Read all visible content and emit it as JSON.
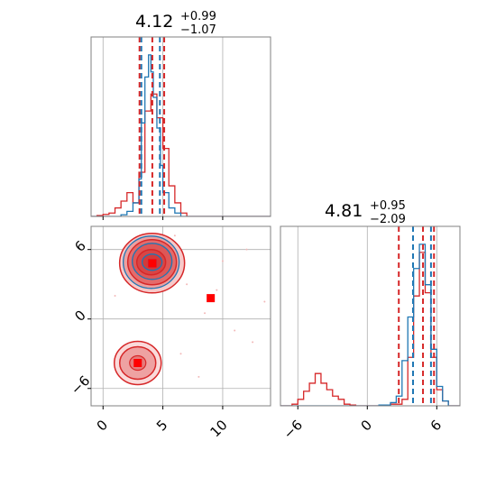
{
  "chart_data": [
    {
      "type": "histogram",
      "panel": "top-left marginal (x)",
      "title": {
        "base": "4.12",
        "sup": "+0.99",
        "sub": "−1.07"
      },
      "xlim": [
        -1,
        14
      ],
      "xticks": [
        0,
        5,
        10
      ],
      "grid": true,
      "series": [
        {
          "color": "#d62728",
          "x": [
            -1.0,
            -0.5,
            0.0,
            0.5,
            1.0,
            1.5,
            2.0,
            2.5,
            3.0,
            3.5,
            4.0,
            4.5,
            5.0,
            5.5,
            6.0,
            6.5,
            7.0,
            14.0
          ],
          "counts": [
            0,
            0.005,
            0.012,
            0.02,
            0.05,
            0.09,
            0.14,
            0.08,
            0.26,
            0.62,
            0.72,
            0.58,
            0.4,
            0.18,
            0.08,
            0.02,
            0.0
          ]
        },
        {
          "color": "#1f77b4",
          "x": [
            -1.0,
            1.5,
            2.0,
            2.5,
            3.0,
            3.2,
            3.5,
            3.8,
            4.0,
            4.2,
            4.5,
            4.8,
            5.0,
            5.5,
            6.0,
            6.5,
            7.0,
            14.0
          ],
          "counts": [
            0,
            0.01,
            0.03,
            0.08,
            0.22,
            0.55,
            0.82,
            0.95,
            0.85,
            0.7,
            0.52,
            0.3,
            0.14,
            0.05,
            0.02,
            0.0,
            0.0
          ]
        }
      ],
      "quantile_lines": [
        {
          "color": "#d62728",
          "x": [
            3.05,
            4.12,
            5.11
          ]
        },
        {
          "color": "#1f77b4",
          "x": [
            3.2,
            4.75
          ]
        }
      ]
    },
    {
      "type": "contour",
      "panel": "bottom-left 2D",
      "xlim": [
        -1,
        14
      ],
      "ylim": [
        -7.5,
        8
      ],
      "xticks": [
        0,
        5,
        10
      ],
      "yticks": [
        -6,
        0,
        6
      ],
      "grid": true,
      "markers": [
        {
          "color": "#0000ff",
          "shape": "square",
          "x": 4.12,
          "y": 4.81
        },
        {
          "color": "#ff0000",
          "shape": "square",
          "x": 4.12,
          "y": 4.81
        },
        {
          "color": "#ff0000",
          "shape": "square",
          "x": 9.0,
          "y": 1.8
        },
        {
          "color": "#ff0000",
          "shape": "square",
          "x": 2.9,
          "y": -3.8
        }
      ]
    },
    {
      "type": "histogram",
      "panel": "bottom-right marginal (y)",
      "title": {
        "base": "4.81",
        "sup": "+0.95",
        "sub": "−2.09"
      },
      "xlim": [
        -7.5,
        8
      ],
      "xticks": [
        -6,
        0,
        6
      ],
      "grid": true,
      "series": [
        {
          "color": "#d62728",
          "x": [
            -7.5,
            -6.5,
            -6.0,
            -5.5,
            -5.0,
            -4.5,
            -4.0,
            -3.5,
            -3.0,
            -2.5,
            -2.0,
            -1.5,
            -1.0,
            0.0,
            1.0,
            2.0,
            3.0,
            3.5,
            4.0,
            4.5,
            5.0,
            5.5,
            6.0,
            6.5,
            7.0,
            8.0
          ],
          "counts": [
            0,
            0.01,
            0.04,
            0.09,
            0.14,
            0.2,
            0.14,
            0.1,
            0.06,
            0.04,
            0.01,
            0.005,
            0.0,
            0.0,
            0.0,
            0.01,
            0.04,
            0.3,
            0.68,
            0.95,
            0.7,
            0.3,
            0.1,
            0.03,
            0.0
          ]
        },
        {
          "color": "#1f77b4",
          "x": [
            -7.5,
            1.0,
            2.0,
            2.5,
            3.0,
            3.5,
            4.0,
            4.5,
            5.0,
            5.5,
            6.0,
            6.5,
            7.0,
            8.0
          ],
          "counts": [
            0,
            0.005,
            0.02,
            0.06,
            0.28,
            0.55,
            0.85,
            1.0,
            0.75,
            0.35,
            0.12,
            0.03,
            0.0
          ]
        }
      ],
      "quantile_lines": [
        {
          "color": "#d62728",
          "x": [
            2.72,
            4.81,
            5.76
          ]
        },
        {
          "color": "#1f77b4",
          "x": [
            3.95,
            5.5
          ]
        }
      ]
    }
  ]
}
